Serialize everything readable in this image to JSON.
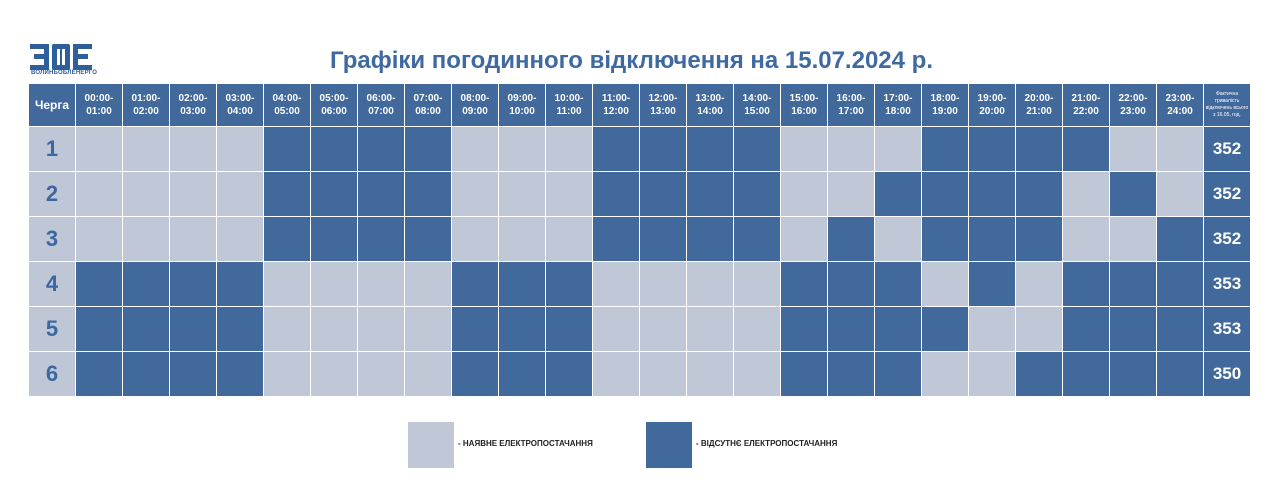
{
  "logo": {
    "letters": "ВОЕ",
    "caption": "ВОЛИНЬОБЛЕНЕРГО"
  },
  "title": "Графіки погодинного відключення на 15.07.2024 р.",
  "table": {
    "queue_header": "Черга",
    "hours": [
      "00:00-\n01:00",
      "01:00-\n02:00",
      "02:00-\n03:00",
      "03:00-\n04:00",
      "04:00-\n05:00",
      "05:00-\n06:00",
      "06:00-\n07:00",
      "07:00-\n08:00",
      "08:00-\n09:00",
      "09:00-\n10:00",
      "10:00-\n11:00",
      "11:00-\n12:00",
      "12:00-\n13:00",
      "13:00-\n14:00",
      "14:00-\n15:00",
      "15:00-\n16:00",
      "16:00-\n17:00",
      "17:00-\n18:00",
      "18:00-\n19:00",
      "19:00-\n20:00",
      "20:00-\n21:00",
      "21:00-\n22:00",
      "22:00-\n23:00",
      "23:00-\n24:00"
    ],
    "total_header": "Фактична тривалість відключень всього з 16.05, год.",
    "rows": [
      {
        "queue": "1",
        "total": "352",
        "slots": [
          0,
          0,
          0,
          0,
          1,
          1,
          1,
          1,
          0,
          0,
          0,
          1,
          1,
          1,
          1,
          0,
          0,
          0,
          1,
          1,
          1,
          1,
          0,
          0
        ]
      },
      {
        "queue": "2",
        "total": "352",
        "slots": [
          0,
          0,
          0,
          0,
          1,
          1,
          1,
          1,
          0,
          0,
          0,
          1,
          1,
          1,
          1,
          0,
          0,
          1,
          1,
          1,
          1,
          0,
          1,
          0
        ]
      },
      {
        "queue": "3",
        "total": "352",
        "slots": [
          0,
          0,
          0,
          0,
          1,
          1,
          1,
          1,
          0,
          0,
          0,
          1,
          1,
          1,
          1,
          0,
          1,
          0,
          1,
          1,
          1,
          0,
          0,
          1
        ]
      },
      {
        "queue": "4",
        "total": "353",
        "slots": [
          1,
          1,
          1,
          1,
          0,
          0,
          0,
          0,
          1,
          1,
          1,
          0,
          0,
          0,
          0,
          1,
          1,
          1,
          0,
          1,
          0,
          1,
          1,
          1
        ]
      },
      {
        "queue": "5",
        "total": "353",
        "slots": [
          1,
          1,
          1,
          1,
          0,
          0,
          0,
          0,
          1,
          1,
          1,
          0,
          0,
          0,
          0,
          1,
          1,
          1,
          1,
          0,
          0,
          1,
          1,
          1
        ]
      },
      {
        "queue": "6",
        "total": "350",
        "slots": [
          1,
          1,
          1,
          1,
          0,
          0,
          0,
          0,
          1,
          1,
          1,
          0,
          0,
          0,
          0,
          1,
          1,
          1,
          0,
          0,
          1,
          1,
          1,
          1
        ]
      }
    ]
  },
  "legend": {
    "on_label": "- НАЯВНЕ ЕЛЕКТРОПОСТАЧАННЯ",
    "off_label": "- ВІДСУТНЄ ЕЛЕКТРОПОСТАЧАННЯ"
  },
  "colors": {
    "power_on": "#c0c7d6",
    "power_off": "#41699c",
    "title": "#3f69a1"
  }
}
